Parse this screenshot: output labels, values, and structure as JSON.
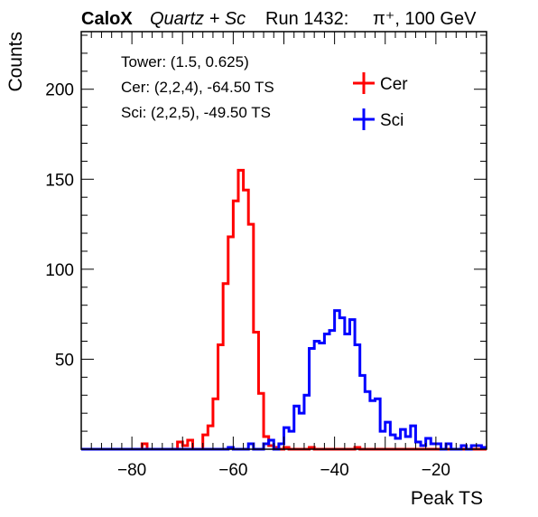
{
  "chart_data": {
    "type": "step-histogram",
    "title": {
      "brand": "CaloX",
      "detector": "Quartz + Sc",
      "run": "Run 1432:",
      "beam": "π⁺, 100 GeV"
    },
    "xlabel": "Peak TS",
    "ylabel": "Counts",
    "xlim": [
      -90,
      -10
    ],
    "ylim": [
      0,
      232
    ],
    "x_ticks": [
      -80,
      -60,
      -40,
      -20
    ],
    "x_tick_labels": [
      "−80",
      "−60",
      "−40",
      "−20"
    ],
    "y_ticks": [
      50,
      100,
      150,
      200
    ],
    "y_tick_labels": [
      "50",
      "100",
      "150",
      "200"
    ],
    "bin_start": -90,
    "bin_width": 1,
    "annotations": [
      "Tower: (1.5, 0.625)",
      "Cer: (2,2,4), -64.50 TS",
      "Sci: (2,2,5), -49.50 TS"
    ],
    "legend_position": "top-right",
    "series": [
      {
        "name": "Cer",
        "color": "#ff0000",
        "values": [
          0,
          0,
          0,
          0,
          0,
          0,
          0,
          0,
          0,
          0,
          0,
          0,
          3,
          0,
          0,
          0,
          0,
          0,
          0,
          4,
          2,
          5,
          0,
          0,
          8,
          13,
          28,
          58,
          92,
          118,
          138,
          155,
          144,
          125,
          65,
          31,
          7,
          2,
          1,
          0,
          1,
          0,
          0,
          0,
          0,
          1,
          0,
          0,
          0,
          0,
          0,
          0,
          0,
          0,
          1,
          0,
          0,
          0,
          0,
          0,
          0,
          0,
          0,
          0,
          0,
          0,
          0,
          0,
          0,
          0,
          0,
          0,
          0,
          0,
          0,
          0,
          0,
          0,
          0,
          0
        ]
      },
      {
        "name": "Sci",
        "color": "#0000ff",
        "values": [
          0,
          0,
          0,
          0,
          0,
          0,
          0,
          0,
          0,
          0,
          0,
          0,
          0,
          0,
          0,
          0,
          0,
          0,
          0,
          0,
          0,
          0,
          0,
          0,
          0,
          0,
          0,
          0,
          0,
          1,
          0,
          0,
          0,
          3,
          0,
          0,
          3,
          5,
          0,
          3,
          12,
          10,
          24,
          20,
          30,
          56,
          60,
          59,
          64,
          66,
          77,
          73,
          64,
          72,
          58,
          41,
          32,
          27,
          28,
          10,
          15,
          8,
          6,
          11,
          7,
          13,
          4,
          2,
          6,
          3,
          3,
          0,
          3,
          0,
          0,
          2,
          0,
          2,
          2,
          1
        ]
      }
    ]
  }
}
